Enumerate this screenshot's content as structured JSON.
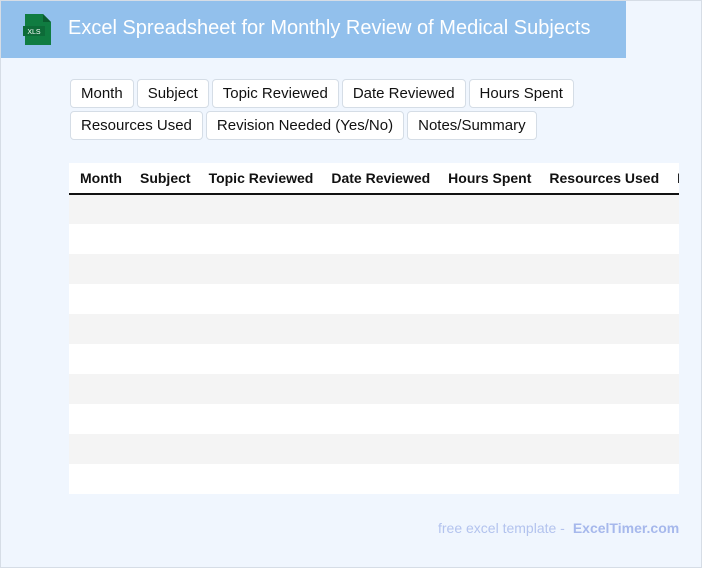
{
  "header": {
    "title": "Excel Spreadsheet for Monthly Review of Medical Subjects",
    "logo_text": "XLS",
    "logo_color": "#107c41"
  },
  "chips": [
    "Month",
    "Subject",
    "Topic Reviewed",
    "Date Reviewed",
    "Hours Spent",
    "Resources Used",
    "Revision Needed (Yes/No)",
    "Notes/Summary"
  ],
  "table": {
    "headers": [
      "Month",
      "Subject",
      "Topic Reviewed",
      "Date Reviewed",
      "Hours Spent",
      "Resources Used",
      "Revision Needed (Yes/No)"
    ],
    "row_count": 10
  },
  "footer": {
    "text": "free excel template -",
    "brand": "ExcelTimer.com"
  }
}
